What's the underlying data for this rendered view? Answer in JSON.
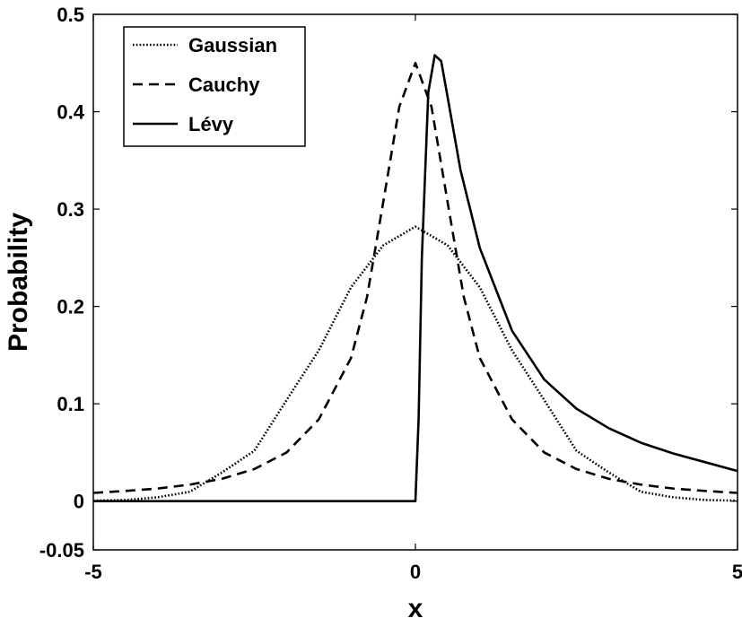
{
  "chart_data": {
    "type": "line",
    "xlabel": "x",
    "ylabel": "Probability",
    "xlim": [
      -5,
      5
    ],
    "ylim": [
      -0.05,
      0.5
    ],
    "xticks": [
      -5,
      0,
      5
    ],
    "xtick_labels": [
      "-5",
      "0",
      "5"
    ],
    "yticks": [
      -0.05,
      0,
      0.1,
      0.2,
      0.3,
      0.4,
      0.5
    ],
    "ytick_labels": [
      "-0.05",
      "0",
      "0.1",
      "0.2",
      "0.3",
      "0.4",
      "0.5"
    ],
    "grid": false,
    "legend_position": "top-left",
    "series": [
      {
        "name": "Gaussian",
        "style": "dotted",
        "x": [
          -5,
          -4.5,
          -4,
          -3.5,
          -3,
          -2.5,
          -2,
          -1.5,
          -1,
          -0.5,
          0,
          0.5,
          1,
          1.5,
          2,
          2.5,
          3,
          3.5,
          4,
          4.5,
          5
        ],
        "y": [
          0.0005,
          0.0012,
          0.004,
          0.0097,
          0.0296,
          0.0518,
          0.1038,
          0.1549,
          0.2196,
          0.2627,
          0.282,
          0.2627,
          0.2196,
          0.1549,
          0.1038,
          0.0518,
          0.0296,
          0.0097,
          0.004,
          0.0012,
          0.0005
        ]
      },
      {
        "name": "Cauchy",
        "style": "dashed",
        "x": [
          -5,
          -4.5,
          -4,
          -3.5,
          -3,
          -2.5,
          -2,
          -1.5,
          -1,
          -0.75,
          -0.5,
          -0.25,
          0,
          0.25,
          0.5,
          0.75,
          1,
          1.5,
          2,
          2.5,
          3,
          3.5,
          4,
          4.5,
          5
        ],
        "y": [
          0.0085,
          0.0105,
          0.013,
          0.017,
          0.023,
          0.033,
          0.05,
          0.084,
          0.147,
          0.21,
          0.307,
          0.405,
          0.45,
          0.405,
          0.307,
          0.21,
          0.147,
          0.084,
          0.05,
          0.033,
          0.023,
          0.017,
          0.013,
          0.0105,
          0.0085
        ]
      },
      {
        "name": "Lévy",
        "style": "solid",
        "x": [
          -5,
          0,
          0.05,
          0.1,
          0.2,
          0.3,
          0.4,
          0.5,
          0.7,
          1,
          1.5,
          2,
          2.5,
          3,
          3.5,
          4,
          4.5,
          5
        ],
        "y": [
          0,
          0,
          0.085,
          0.25,
          0.42,
          0.458,
          0.452,
          0.415,
          0.34,
          0.26,
          0.175,
          0.125,
          0.095,
          0.075,
          0.06,
          0.049,
          0.04,
          0.031
        ]
      }
    ]
  }
}
